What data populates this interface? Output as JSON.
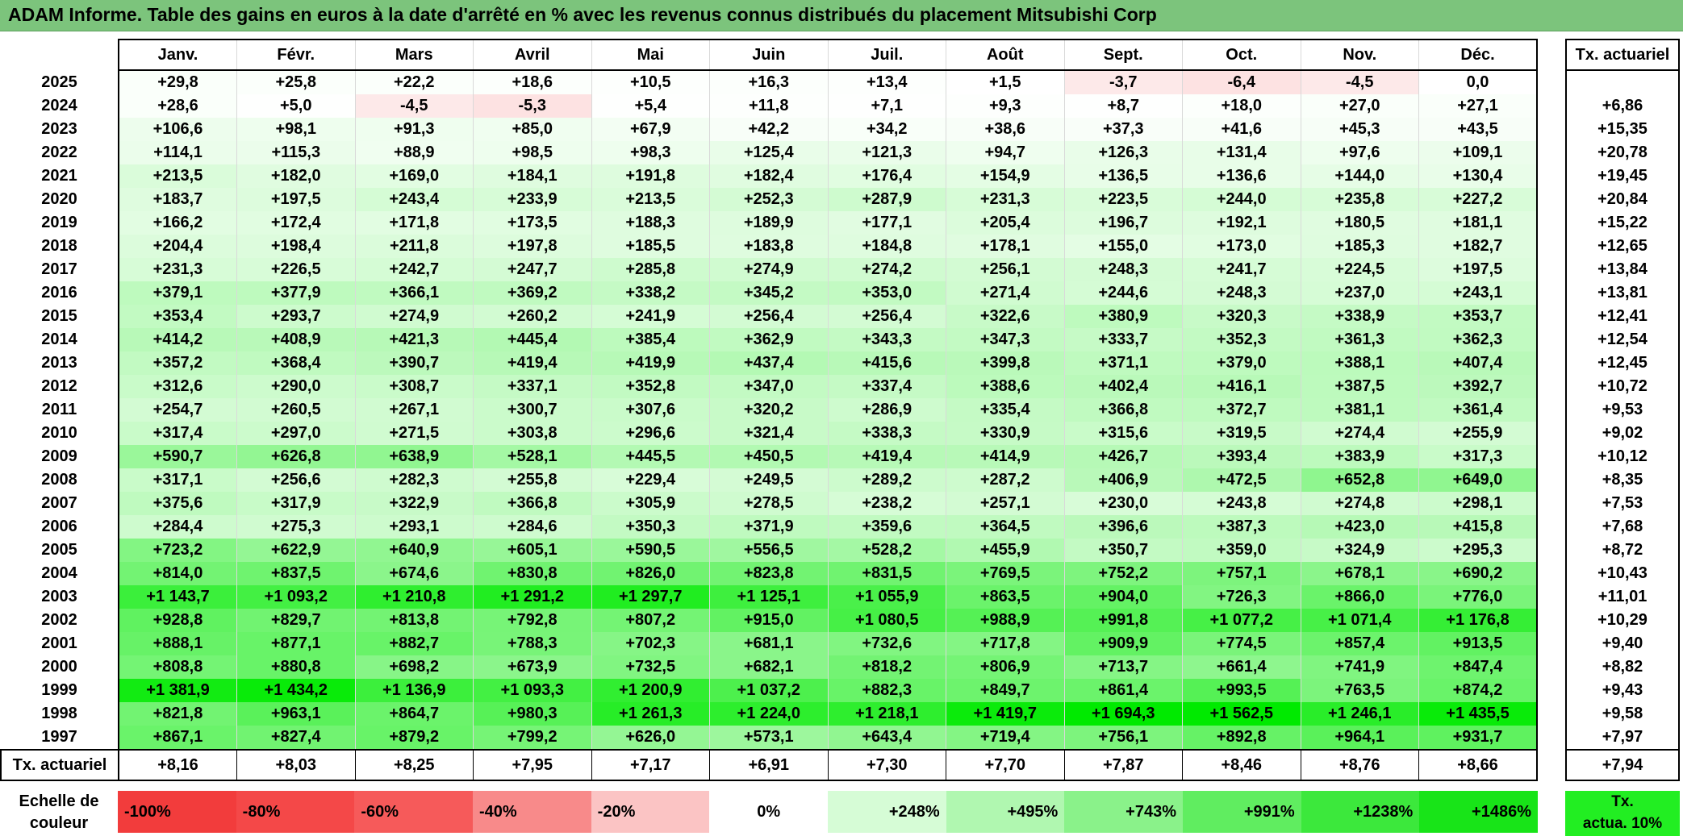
{
  "title": "ADAM Informe. Table des gains en euros à la date d'arrêté en % avec les revenus connus distribués du placement Mitsubishi Corp",
  "months": [
    "Janv.",
    "Févr.",
    "Mars",
    "Avril",
    "Mai",
    "Juin",
    "Juil.",
    "Août",
    "Sept.",
    "Oct.",
    "Nov.",
    "Déc."
  ],
  "rate_header": "Tx. actuariel",
  "rows": [
    {
      "year": "2025",
      "cells": [
        "+29,8",
        "+25,8",
        "+22,2",
        "+18,6",
        "+10,5",
        "+16,3",
        "+13,4",
        "+1,5",
        "-3,7",
        "-6,4",
        "-4,5",
        "0,0"
      ],
      "rate": ""
    },
    {
      "year": "2024",
      "cells": [
        "+28,6",
        "+5,0",
        "-4,5",
        "-5,3",
        "+5,4",
        "+11,8",
        "+7,1",
        "+9,3",
        "+8,7",
        "+18,0",
        "+27,0",
        "+27,1"
      ],
      "rate": "+6,86"
    },
    {
      "year": "2023",
      "cells": [
        "+106,6",
        "+98,1",
        "+91,3",
        "+85,0",
        "+67,9",
        "+42,2",
        "+34,2",
        "+38,6",
        "+37,3",
        "+41,6",
        "+45,3",
        "+43,5"
      ],
      "rate": "+15,35"
    },
    {
      "year": "2022",
      "cells": [
        "+114,1",
        "+115,3",
        "+88,9",
        "+98,5",
        "+98,3",
        "+125,4",
        "+121,3",
        "+94,7",
        "+126,3",
        "+131,4",
        "+97,6",
        "+109,1"
      ],
      "rate": "+20,78"
    },
    {
      "year": "2021",
      "cells": [
        "+213,5",
        "+182,0",
        "+169,0",
        "+184,1",
        "+191,8",
        "+182,4",
        "+176,4",
        "+154,9",
        "+136,5",
        "+136,6",
        "+144,0",
        "+130,4"
      ],
      "rate": "+19,45"
    },
    {
      "year": "2020",
      "cells": [
        "+183,7",
        "+197,5",
        "+243,4",
        "+233,9",
        "+213,5",
        "+252,3",
        "+287,9",
        "+231,3",
        "+223,5",
        "+244,0",
        "+235,8",
        "+227,2"
      ],
      "rate": "+20,84"
    },
    {
      "year": "2019",
      "cells": [
        "+166,2",
        "+172,4",
        "+171,8",
        "+173,5",
        "+188,3",
        "+189,9",
        "+177,1",
        "+205,4",
        "+196,7",
        "+192,1",
        "+180,5",
        "+181,1"
      ],
      "rate": "+15,22"
    },
    {
      "year": "2018",
      "cells": [
        "+204,4",
        "+198,4",
        "+211,8",
        "+197,8",
        "+185,5",
        "+183,8",
        "+184,8",
        "+178,1",
        "+155,0",
        "+173,0",
        "+185,3",
        "+182,7"
      ],
      "rate": "+12,65"
    },
    {
      "year": "2017",
      "cells": [
        "+231,3",
        "+226,5",
        "+242,7",
        "+247,7",
        "+285,8",
        "+274,9",
        "+274,2",
        "+256,1",
        "+248,3",
        "+241,7",
        "+224,5",
        "+197,5"
      ],
      "rate": "+13,84"
    },
    {
      "year": "2016",
      "cells": [
        "+379,1",
        "+377,9",
        "+366,1",
        "+369,2",
        "+338,2",
        "+345,2",
        "+353,0",
        "+271,4",
        "+244,6",
        "+248,3",
        "+237,0",
        "+243,1"
      ],
      "rate": "+13,81"
    },
    {
      "year": "2015",
      "cells": [
        "+353,4",
        "+293,7",
        "+274,9",
        "+260,2",
        "+241,9",
        "+256,4",
        "+256,4",
        "+322,6",
        "+380,9",
        "+320,3",
        "+338,9",
        "+353,7"
      ],
      "rate": "+12,41"
    },
    {
      "year": "2014",
      "cells": [
        "+414,2",
        "+408,9",
        "+421,3",
        "+445,4",
        "+385,4",
        "+362,9",
        "+343,3",
        "+347,3",
        "+333,7",
        "+352,3",
        "+361,3",
        "+362,3"
      ],
      "rate": "+12,54"
    },
    {
      "year": "2013",
      "cells": [
        "+357,2",
        "+368,4",
        "+390,7",
        "+419,4",
        "+419,9",
        "+437,4",
        "+415,6",
        "+399,8",
        "+371,1",
        "+379,0",
        "+388,1",
        "+407,4"
      ],
      "rate": "+12,45"
    },
    {
      "year": "2012",
      "cells": [
        "+312,6",
        "+290,0",
        "+308,7",
        "+337,1",
        "+352,8",
        "+347,0",
        "+337,4",
        "+388,6",
        "+402,4",
        "+416,1",
        "+387,5",
        "+392,7"
      ],
      "rate": "+10,72"
    },
    {
      "year": "2011",
      "cells": [
        "+254,7",
        "+260,5",
        "+267,1",
        "+300,7",
        "+307,6",
        "+320,2",
        "+286,9",
        "+335,4",
        "+366,8",
        "+372,7",
        "+381,1",
        "+361,4"
      ],
      "rate": "+9,53"
    },
    {
      "year": "2010",
      "cells": [
        "+317,4",
        "+297,0",
        "+271,5",
        "+303,8",
        "+296,6",
        "+321,4",
        "+338,3",
        "+330,9",
        "+315,6",
        "+319,5",
        "+274,4",
        "+255,9"
      ],
      "rate": "+9,02"
    },
    {
      "year": "2009",
      "cells": [
        "+590,7",
        "+626,8",
        "+638,9",
        "+528,1",
        "+445,5",
        "+450,5",
        "+419,4",
        "+414,9",
        "+426,7",
        "+393,4",
        "+383,9",
        "+317,3"
      ],
      "rate": "+10,12"
    },
    {
      "year": "2008",
      "cells": [
        "+317,1",
        "+256,6",
        "+282,3",
        "+255,8",
        "+229,4",
        "+249,5",
        "+289,2",
        "+287,2",
        "+406,9",
        "+472,5",
        "+652,8",
        "+649,0"
      ],
      "rate": "+8,35"
    },
    {
      "year": "2007",
      "cells": [
        "+375,6",
        "+317,9",
        "+322,9",
        "+366,8",
        "+305,9",
        "+278,5",
        "+238,2",
        "+257,1",
        "+230,0",
        "+243,8",
        "+274,8",
        "+298,1"
      ],
      "rate": "+7,53"
    },
    {
      "year": "2006",
      "cells": [
        "+284,4",
        "+275,3",
        "+293,1",
        "+284,6",
        "+350,3",
        "+371,9",
        "+359,6",
        "+364,5",
        "+396,6",
        "+387,3",
        "+423,0",
        "+415,8"
      ],
      "rate": "+7,68"
    },
    {
      "year": "2005",
      "cells": [
        "+723,2",
        "+622,9",
        "+640,9",
        "+605,1",
        "+590,5",
        "+556,5",
        "+528,2",
        "+455,9",
        "+350,7",
        "+359,0",
        "+324,9",
        "+295,3"
      ],
      "rate": "+8,72"
    },
    {
      "year": "2004",
      "cells": [
        "+814,0",
        "+837,5",
        "+674,6",
        "+830,8",
        "+826,0",
        "+823,8",
        "+831,5",
        "+769,5",
        "+752,2",
        "+757,1",
        "+678,1",
        "+690,2"
      ],
      "rate": "+10,43"
    },
    {
      "year": "2003",
      "cells": [
        "+1 143,7",
        "+1 093,2",
        "+1 210,8",
        "+1 291,2",
        "+1 297,7",
        "+1 125,1",
        "+1 055,9",
        "+863,5",
        "+904,0",
        "+726,3",
        "+866,0",
        "+776,0"
      ],
      "rate": "+11,01"
    },
    {
      "year": "2002",
      "cells": [
        "+928,8",
        "+829,7",
        "+813,8",
        "+792,8",
        "+807,2",
        "+915,0",
        "+1 080,5",
        "+988,9",
        "+991,8",
        "+1 077,2",
        "+1 071,4",
        "+1 176,8"
      ],
      "rate": "+10,29"
    },
    {
      "year": "2001",
      "cells": [
        "+888,1",
        "+877,1",
        "+882,7",
        "+788,3",
        "+702,3",
        "+681,1",
        "+732,6",
        "+717,8",
        "+909,9",
        "+774,5",
        "+857,4",
        "+913,5"
      ],
      "rate": "+9,40"
    },
    {
      "year": "2000",
      "cells": [
        "+808,8",
        "+880,8",
        "+698,2",
        "+673,9",
        "+732,5",
        "+682,1",
        "+818,2",
        "+806,9",
        "+713,7",
        "+661,4",
        "+741,9",
        "+847,4"
      ],
      "rate": "+8,82"
    },
    {
      "year": "1999",
      "cells": [
        "+1 381,9",
        "+1 434,2",
        "+1 136,9",
        "+1 093,3",
        "+1 200,9",
        "+1 037,2",
        "+882,3",
        "+849,7",
        "+861,4",
        "+993,5",
        "+763,5",
        "+874,2"
      ],
      "rate": "+9,43"
    },
    {
      "year": "1998",
      "cells": [
        "+821,8",
        "+963,1",
        "+864,7",
        "+980,3",
        "+1 261,3",
        "+1 224,0",
        "+1 218,1",
        "+1 419,7",
        "+1 694,3",
        "+1 562,5",
        "+1 246,1",
        "+1 435,5"
      ],
      "rate": "+9,58"
    },
    {
      "year": "1997",
      "cells": [
        "+867,1",
        "+827,4",
        "+879,2",
        "+799,2",
        "+626,0",
        "+573,1",
        "+643,4",
        "+719,4",
        "+756,1",
        "+892,8",
        "+964,1",
        "+931,7"
      ],
      "rate": "+7,97"
    }
  ],
  "tx_row": {
    "label": "Tx. actuariel",
    "cells": [
      "+8,16",
      "+8,03",
      "+8,25",
      "+7,95",
      "+7,17",
      "+6,91",
      "+7,30",
      "+7,70",
      "+7,87",
      "+8,46",
      "+8,76",
      "+8,66"
    ],
    "rate": "+7,94"
  },
  "scale": {
    "label_line1": "Echelle de",
    "label_line2": "couleur",
    "swatches": [
      {
        "text": "-100%",
        "color": "#f23c3c"
      },
      {
        "text": "-80%",
        "color": "#f44848"
      },
      {
        "text": "-60%",
        "color": "#f65a5a"
      },
      {
        "text": "-40%",
        "color": "#f88a8a"
      },
      {
        "text": "-20%",
        "color": "#fbc4c4"
      },
      {
        "text": "0%",
        "color": "#ffffff"
      },
      {
        "text": "+248%",
        "color": "#d6fcd6"
      },
      {
        "text": "+495%",
        "color": "#b0f7b0"
      },
      {
        "text": "+743%",
        "color": "#8af28a"
      },
      {
        "text": "+991%",
        "color": "#60ed60"
      },
      {
        "text": "+1238%",
        "color": "#3ce83c"
      },
      {
        "text": "+1486%",
        "color": "#18e418"
      }
    ],
    "actua_line1": "Tx.",
    "actua_line2": "actua. 10%",
    "actua_color": "#22ee22"
  }
}
